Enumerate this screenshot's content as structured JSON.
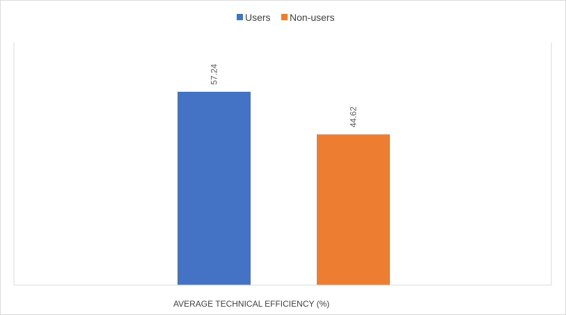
{
  "chart_data": {
    "type": "bar",
    "categories": [
      "AVERAGE TECHNICAL EFFICIENCY (%)"
    ],
    "series": [
      {
        "name": "Users",
        "values": [
          57.24
        ],
        "color": "#4472c4"
      },
      {
        "name": "Non-users",
        "values": [
          44.62
        ],
        "color": "#ed7d31"
      }
    ],
    "title": "",
    "xlabel": "",
    "ylabel": "",
    "ylim": [
      0,
      70
    ],
    "grid": false,
    "legend_position": "top-center",
    "data_labels": [
      "57.24",
      "44.62"
    ]
  }
}
